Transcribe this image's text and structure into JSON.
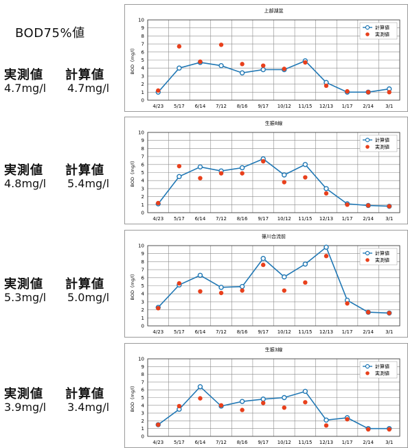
{
  "heading": "BOD75%値",
  "labels": {
    "measured": "実測値",
    "calculated": "計算値"
  },
  "stats": [
    {
      "measured": "4.7mg/l",
      "calculated": "4.7mg/l"
    },
    {
      "measured": "4.8mg/l",
      "calculated": "5.4mg/l"
    },
    {
      "measured": "5.3mg/l",
      "calculated": "5.0mg/l"
    },
    {
      "measured": "3.9mg/l",
      "calculated": "3.4mg/l"
    }
  ],
  "colors": {
    "calculated": "#1f77b4",
    "measured": "#e8401c"
  },
  "chart_data": [
    {
      "type": "line",
      "title": "上部湖盆",
      "ylabel": "BOD（mg/l）",
      "categories": [
        "4/23",
        "5/17",
        "6/14",
        "7/12",
        "8/16",
        "9/17",
        "10/12",
        "11/15",
        "12/13",
        "1/17",
        "2/14",
        "3/1"
      ],
      "ylim": [
        0,
        10
      ],
      "yticks": [
        "0",
        "1",
        "2",
        "3",
        "4",
        "5",
        "6",
        "7",
        "8",
        "9",
        "10"
      ],
      "legend_position": "top-right",
      "series": [
        {
          "name": "計算値",
          "style": "line-marker",
          "values": [
            1.0,
            4.0,
            4.7,
            4.3,
            3.4,
            3.8,
            3.8,
            4.9,
            2.2,
            1.0,
            1.0,
            1.4
          ]
        },
        {
          "name": "実測値",
          "style": "dots",
          "values": [
            1.2,
            6.7,
            4.8,
            6.9,
            4.5,
            4.3,
            3.9,
            4.7,
            1.8,
            1.1,
            1.0,
            1.0
          ]
        }
      ]
    },
    {
      "type": "line",
      "title": "生振8線",
      "ylabel": "BOD（mg/l）",
      "categories": [
        "4/23",
        "5/17",
        "6/14",
        "7/12",
        "8/16",
        "9/17",
        "10/12",
        "11/15",
        "12/13",
        "1/17",
        "2/14",
        "3/1"
      ],
      "ylim": [
        0,
        10
      ],
      "yticks": [
        "0",
        "1",
        "2",
        "3",
        "4",
        "5",
        "6",
        "7",
        "8",
        "9",
        "10"
      ],
      "legend_position": "top-right",
      "series": [
        {
          "name": "計算値",
          "style": "line-marker",
          "values": [
            1.1,
            4.5,
            5.7,
            5.2,
            5.6,
            6.7,
            4.7,
            6.0,
            3.0,
            1.1,
            0.9,
            0.8
          ]
        },
        {
          "name": "実測値",
          "style": "dots",
          "values": [
            1.2,
            5.8,
            4.3,
            4.9,
            4.9,
            6.4,
            3.8,
            4.4,
            2.4,
            1.0,
            0.9,
            0.8
          ]
        }
      ]
    },
    {
      "type": "line",
      "title": "篠川合流前",
      "ylabel": "BOD（mg/l）",
      "categories": [
        "4/23",
        "5/17",
        "6/14",
        "7/12",
        "8/16",
        "9/17",
        "10/12",
        "11/15",
        "12/13",
        "1/17",
        "2/14",
        "3/1"
      ],
      "ylim": [
        0,
        10
      ],
      "yticks": [
        "0",
        "1",
        "2",
        "3",
        "4",
        "5",
        "6",
        "7",
        "8",
        "9",
        "10"
      ],
      "legend_position": "top-right",
      "series": [
        {
          "name": "計算値",
          "style": "line-marker",
          "values": [
            2.3,
            5.1,
            6.3,
            4.8,
            4.9,
            8.4,
            6.1,
            7.7,
            9.8,
            3.2,
            1.7,
            1.6
          ]
        },
        {
          "name": "実測値",
          "style": "dots",
          "values": [
            2.2,
            5.3,
            4.3,
            4.1,
            4.4,
            7.6,
            4.4,
            5.4,
            8.7,
            2.8,
            1.7,
            1.6
          ]
        }
      ]
    },
    {
      "type": "line",
      "title": "生振3線",
      "ylabel": "BOD（mg/l）",
      "categories": [
        "4/23",
        "5/17",
        "6/14",
        "7/12",
        "8/16",
        "9/17",
        "10/12",
        "11/15",
        "12/13",
        "1/17",
        "2/14",
        "3/1"
      ],
      "ylim": [
        0,
        10
      ],
      "yticks": [
        "0",
        "1",
        "2",
        "3",
        "4",
        "5",
        "6",
        "7",
        "8",
        "9",
        "10"
      ],
      "legend_position": "top-right",
      "series": [
        {
          "name": "計算値",
          "style": "line-marker",
          "values": [
            1.5,
            3.5,
            6.4,
            3.9,
            4.5,
            4.8,
            5.0,
            5.8,
            2.1,
            2.4,
            1.0,
            1.0
          ]
        },
        {
          "name": "実測値",
          "style": "dots",
          "values": [
            1.5,
            3.9,
            4.9,
            4.0,
            3.4,
            4.3,
            3.7,
            4.4,
            1.4,
            2.2,
            0.9,
            0.9
          ]
        }
      ]
    }
  ]
}
